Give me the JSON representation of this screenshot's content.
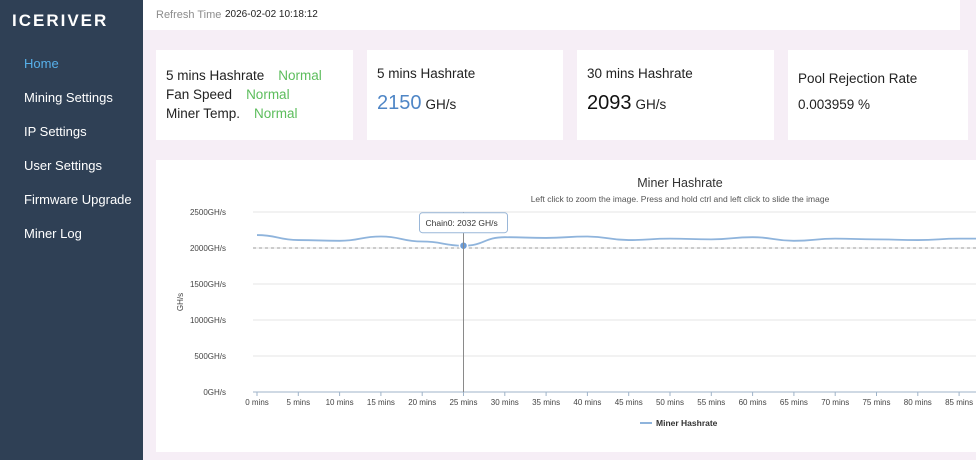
{
  "brand": {
    "name": "ICERIVER"
  },
  "sidebar": {
    "items": [
      {
        "label": "Home",
        "active": true
      },
      {
        "label": "Mining Settings",
        "active": false
      },
      {
        "label": "IP Settings",
        "active": false
      },
      {
        "label": "User Settings",
        "active": false
      },
      {
        "label": "Firmware Upgrade",
        "active": false
      },
      {
        "label": "Miner Log",
        "active": false
      }
    ]
  },
  "topbar": {
    "refresh_label": "Refresh Time",
    "refresh_value": "2026-02-02 10:18:12"
  },
  "status_card": {
    "rows": [
      {
        "label": "5 mins Hashrate",
        "status": "Normal"
      },
      {
        "label": "Fan Speed",
        "status": "Normal"
      },
      {
        "label": "Miner Temp.",
        "status": "Normal"
      }
    ]
  },
  "stats": [
    {
      "title": "5 mins Hashrate",
      "value": "2150",
      "unit": "GH/s"
    },
    {
      "title": "30 mins Hashrate",
      "value": "2093",
      "unit": "GH/s"
    },
    {
      "title": "Pool Rejection Rate",
      "value": "0.003959 %"
    }
  ],
  "colors": {
    "sidebar_bg": "#2f4055",
    "accent": "#57b0ea",
    "status_ok": "#5cbd5c",
    "line": "#8fb4dc"
  },
  "chart_data": {
    "type": "line",
    "title": "Miner Hashrate",
    "subtitle": "Left click to zoom the image. Press and hold ctrl and left click to slide the image",
    "ylabel": "GH/s",
    "ylim": [
      0,
      2500
    ],
    "y_ticks": [
      "0GH/s",
      "500GH/s",
      "1000GH/s",
      "1500GH/s",
      "2000GH/s",
      "2500GH/s"
    ],
    "x": [
      "0 mins",
      "5 mins",
      "10 mins",
      "15 mins",
      "20 mins",
      "25 mins",
      "30 mins",
      "35 mins",
      "40 mins",
      "45 mins",
      "50 mins",
      "55 mins",
      "60 mins",
      "65 mins",
      "70 mins",
      "75 mins",
      "80 mins",
      "85 mins"
    ],
    "series": [
      {
        "name": "Miner Hashrate",
        "values": [
          2180,
          2110,
          2100,
          2160,
          2090,
          2032,
          2150,
          2140,
          2160,
          2110,
          2130,
          2120,
          2150,
          2100,
          2130,
          2120,
          2110,
          2130
        ]
      }
    ],
    "reference_line": 2000,
    "tooltip": {
      "index": 5,
      "text": "Chain0: 2032 GH/s"
    },
    "legend": "bottom-center",
    "grid": true
  }
}
